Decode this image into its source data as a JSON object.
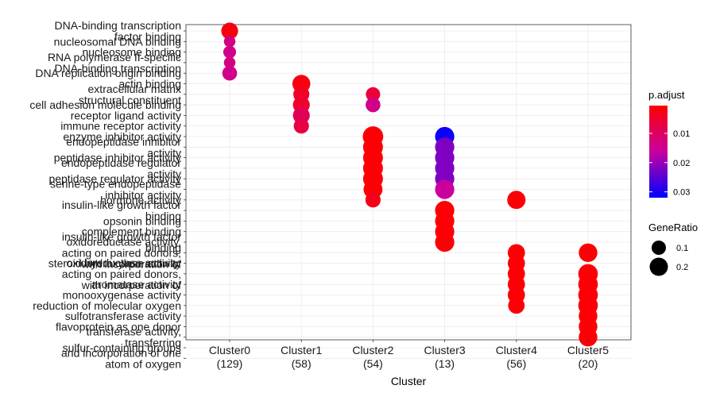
{
  "chart_data": {
    "type": "scatter",
    "title": "",
    "xlabel": "Cluster",
    "ylabel": "",
    "x_categories": [
      "Cluster0\n(129)",
      "Cluster1\n(58)",
      "Cluster2\n(54)",
      "Cluster3\n(13)",
      "Cluster4\n(56)",
      "Cluster5\n(20)"
    ],
    "y_categories": [
      "DNA-binding transcription\nfactor binding",
      "nucleosomal DNA binding",
      "nucleosome binding",
      "RNA polymerase II-specific\nDNA-binding transcription",
      "DNA replication origin binding",
      "actin binding",
      "extracellular matrix\nstructural constituent",
      "cell adhesion molecule binding",
      "receptor ligand activity",
      "immune receptor activity",
      "enzyme inhibitor activity",
      "endopeptidase inhibitor\nactivity",
      "peptidase inhibitor activity",
      "endopeptidase regulator\nactivity",
      "peptidase regulator activity",
      "serine-type endopeptidase\ninhibitor activity",
      "hormone activity",
      "insulin-like growth factor\nbinding",
      "opsonin binding",
      "complement binding",
      "insulin-like growth factor\nbinding",
      "oxidoreductase activity,\nacting on paired donors,\nwith incorporation of",
      "steroid hydroxylase activity",
      "oxidoreductase activity,\nacting on paired donors,\nwith incorporation of",
      "aromatase activity",
      "monooxygenase activity",
      "reduction of molecular oxygen",
      "sulfotransferase activity",
      "flavoprotein as one donor",
      "transferase activity,\ntransferring",
      "sulfur-containing groups",
      "and incorporation of one\natom of oxygen"
    ],
    "points": [
      {
        "x": "Cluster0",
        "y": 0,
        "gene_ratio": 0.16,
        "p_adjust": 0.002
      },
      {
        "x": "Cluster0",
        "y": 1,
        "gene_ratio": 0.05,
        "p_adjust": 0.013
      },
      {
        "x": "Cluster0",
        "y": 2,
        "gene_ratio": 0.07,
        "p_adjust": 0.014
      },
      {
        "x": "Cluster0",
        "y": 3,
        "gene_ratio": 0.05,
        "p_adjust": 0.013
      },
      {
        "x": "Cluster0",
        "y": 4,
        "gene_ratio": 0.11,
        "p_adjust": 0.014
      },
      {
        "x": "Cluster1",
        "y": 5,
        "gene_ratio": 0.19,
        "p_adjust": 0.002
      },
      {
        "x": "Cluster1",
        "y": 6,
        "gene_ratio": 0.14,
        "p_adjust": 0.004
      },
      {
        "x": "Cluster1",
        "y": 7,
        "gene_ratio": 0.16,
        "p_adjust": 0.005
      },
      {
        "x": "Cluster1",
        "y": 8,
        "gene_ratio": 0.16,
        "p_adjust": 0.009
      },
      {
        "x": "Cluster1",
        "y": 9,
        "gene_ratio": 0.12,
        "p_adjust": 0.007
      },
      {
        "x": "Cluster2",
        "y": 6,
        "gene_ratio": 0.1,
        "p_adjust": 0.006
      },
      {
        "x": "Cluster2",
        "y": 7,
        "gene_ratio": 0.11,
        "p_adjust": 0.014
      },
      {
        "x": "Cluster2",
        "y": 10,
        "gene_ratio": 0.27,
        "p_adjust": 0.001
      },
      {
        "x": "Cluster2",
        "y": 11,
        "gene_ratio": 0.25,
        "p_adjust": 0.001
      },
      {
        "x": "Cluster2",
        "y": 12,
        "gene_ratio": 0.25,
        "p_adjust": 0.001
      },
      {
        "x": "Cluster2",
        "y": 13,
        "gene_ratio": 0.25,
        "p_adjust": 0.001
      },
      {
        "x": "Cluster2",
        "y": 14,
        "gene_ratio": 0.25,
        "p_adjust": 0.001
      },
      {
        "x": "Cluster2",
        "y": 15,
        "gene_ratio": 0.22,
        "p_adjust": 0.001
      },
      {
        "x": "Cluster2",
        "y": 16,
        "gene_ratio": 0.12,
        "p_adjust": 0.003
      },
      {
        "x": "Cluster3",
        "y": 10,
        "gene_ratio": 0.23,
        "p_adjust": 0.031
      },
      {
        "x": "Cluster3",
        "y": 11,
        "gene_ratio": 0.23,
        "p_adjust": 0.022
      },
      {
        "x": "Cluster3",
        "y": 12,
        "gene_ratio": 0.23,
        "p_adjust": 0.022
      },
      {
        "x": "Cluster3",
        "y": 13,
        "gene_ratio": 0.23,
        "p_adjust": 0.022
      },
      {
        "x": "Cluster3",
        "y": 14,
        "gene_ratio": 0.23,
        "p_adjust": 0.022
      },
      {
        "x": "Cluster3",
        "y": 15,
        "gene_ratio": 0.23,
        "p_adjust": 0.016
      },
      {
        "x": "Cluster3",
        "y": 17,
        "gene_ratio": 0.23,
        "p_adjust": 0.001
      },
      {
        "x": "Cluster3",
        "y": 18,
        "gene_ratio": 0.23,
        "p_adjust": 0.001
      },
      {
        "x": "Cluster3",
        "y": 19,
        "gene_ratio": 0.23,
        "p_adjust": 0.001
      },
      {
        "x": "Cluster3",
        "y": 20,
        "gene_ratio": 0.23,
        "p_adjust": 0.001
      },
      {
        "x": "Cluster4",
        "y": 16,
        "gene_ratio": 0.2,
        "p_adjust": 0.001
      },
      {
        "x": "Cluster4",
        "y": 21,
        "gene_ratio": 0.17,
        "p_adjust": 0.001
      },
      {
        "x": "Cluster4",
        "y": 22,
        "gene_ratio": 0.17,
        "p_adjust": 0.001
      },
      {
        "x": "Cluster4",
        "y": 23,
        "gene_ratio": 0.17,
        "p_adjust": 0.001
      },
      {
        "x": "Cluster4",
        "y": 24,
        "gene_ratio": 0.17,
        "p_adjust": 0.001
      },
      {
        "x": "Cluster4",
        "y": 25,
        "gene_ratio": 0.17,
        "p_adjust": 0.001
      },
      {
        "x": "Cluster4",
        "y": 26,
        "gene_ratio": 0.15,
        "p_adjust": 0.001
      },
      {
        "x": "Cluster5",
        "y": 21,
        "gene_ratio": 0.21,
        "p_adjust": 0.001
      },
      {
        "x": "Cluster5",
        "y": 23,
        "gene_ratio": 0.24,
        "p_adjust": 0.001
      },
      {
        "x": "Cluster5",
        "y": 24,
        "gene_ratio": 0.24,
        "p_adjust": 0.001
      },
      {
        "x": "Cluster5",
        "y": 25,
        "gene_ratio": 0.24,
        "p_adjust": 0.001
      },
      {
        "x": "Cluster5",
        "y": 26,
        "gene_ratio": 0.24,
        "p_adjust": 0.001
      },
      {
        "x": "Cluster5",
        "y": 27,
        "gene_ratio": 0.21,
        "p_adjust": 0.001
      },
      {
        "x": "Cluster5",
        "y": 28,
        "gene_ratio": 0.21,
        "p_adjust": 0.001
      },
      {
        "x": "Cluster5",
        "y": 29,
        "gene_ratio": 0.21,
        "p_adjust": 0.001
      }
    ],
    "color_legend": {
      "title": "p.adjust",
      "ticks": [
        0.01,
        0.02,
        0.03
      ],
      "tick_labels": [
        "0.01",
        "0.02",
        "0.03"
      ],
      "range": [
        0.0005,
        0.032
      ],
      "low_color": "#ff0000",
      "high_color": "#0000ff"
    },
    "size_legend": {
      "title": "GeneRatio",
      "values": [
        0.1,
        0.2
      ],
      "labels": [
        "0.1",
        "0.2"
      ]
    },
    "grid": true,
    "legend_position": "right"
  }
}
